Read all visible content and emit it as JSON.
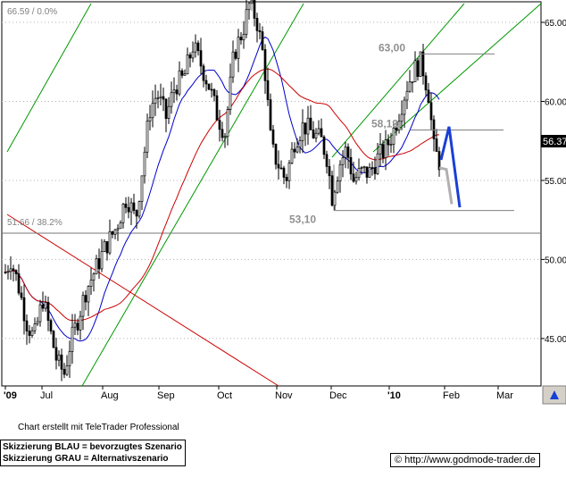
{
  "chart_data": {
    "type": "candlestick",
    "ohlc_caption": "66.59 / 0.0%",
    "support_caption": "51.66 / 38.2%",
    "x_tick_labels": [
      "'09",
      "Jul",
      "Aug",
      "Sep",
      "Oct",
      "Nov",
      "Dec",
      "'10",
      "Feb",
      "Mar"
    ],
    "y_tick_labels": [
      "45.00",
      "50.00",
      "55.00",
      "60.00",
      "65.00"
    ],
    "ylim": [
      42,
      66.3
    ],
    "current_price": "56.37",
    "annotations": [
      {
        "text": "66,59",
        "value": 66.59
      },
      {
        "text": "63,00",
        "value": 63.0
      },
      {
        "text": "58,19",
        "value": 58.19
      },
      {
        "text": "53,10",
        "value": 53.1
      }
    ],
    "grid": "horizontal dotted",
    "series": [
      {
        "name": "price",
        "color": "#000000"
      },
      {
        "name": "moving average (short)",
        "color": "#0000cc"
      },
      {
        "name": "moving average (long)",
        "color": "#cc0000"
      }
    ],
    "scenario_blue": {
      "color": "#1a3fd6",
      "path": [
        56.3,
        58.4,
        53.3
      ]
    },
    "scenario_grey": {
      "color": "#b0b0b0",
      "path": [
        55.8,
        55.7,
        53.5
      ]
    }
  },
  "footer": {
    "credit": "Chart erstellt mit TeleTrader Professional",
    "legend_blue": "Skizzierung BLAU = bevorzugtes Szenario",
    "legend_grey": "Skizzierung GRAU = Alternativszenario",
    "url": "http://www.godmode-trader.de",
    "copyright_symbol": "©"
  }
}
